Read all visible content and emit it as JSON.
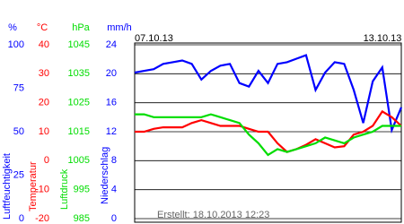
{
  "chart_data": {
    "type": "line",
    "categories": [
      "07.10.13",
      null,
      null,
      null,
      null,
      null,
      null,
      null,
      null,
      null,
      null,
      null,
      null,
      null,
      null,
      null,
      null,
      null,
      null,
      null,
      null,
      null,
      null,
      null,
      "13.10.13",
      null,
      null,
      null,
      null
    ],
    "y_axes": [
      {
        "unit": "%",
        "title": "Luftfeuchtigkeit",
        "color": "#0000ff",
        "lim": [
          0,
          100
        ],
        "ticks": [
          0,
          25,
          50,
          75,
          100
        ]
      },
      {
        "unit": "°C",
        "title": "Temperatur",
        "color": "#ff0000",
        "lim": [
          -20,
          40
        ],
        "ticks": [
          -20,
          -10,
          0,
          10,
          20,
          30,
          40
        ]
      },
      {
        "unit": "hPa",
        "title": "Luftdruck",
        "color": "#00dd00",
        "lim": [
          985,
          1045
        ],
        "ticks": [
          985,
          995,
          1005,
          1015,
          1025,
          1035,
          1045
        ]
      },
      {
        "unit": "mm/h",
        "title": "Niederschlag",
        "color": "#0000ff",
        "lim": [
          0,
          24
        ],
        "ticks": [
          0,
          4,
          8,
          12,
          16,
          20,
          24
        ]
      }
    ],
    "grid_axis": 1,
    "series": [
      {
        "axis": 0,
        "color": "#0000ff",
        "values": [
          84,
          85,
          86,
          89,
          90,
          91,
          89,
          80,
          85,
          88,
          89,
          78,
          76,
          85,
          78,
          89,
          90,
          92,
          94,
          74,
          84,
          90,
          89,
          74,
          55,
          79,
          87,
          51,
          64
        ]
      },
      {
        "axis": 1,
        "color": "#ff0000",
        "values": [
          10,
          10,
          11,
          11.5,
          11.5,
          11.5,
          13,
          14,
          13,
          12,
          12,
          12,
          11,
          10,
          10,
          6,
          3,
          4,
          5.5,
          7.4,
          6,
          4.6,
          5,
          9,
          10,
          12,
          17,
          15,
          12
        ]
      },
      {
        "axis": 2,
        "color": "#00dd00",
        "values": [
          1021,
          1021,
          1020,
          1020,
          1020,
          1020,
          1020,
          1020,
          1021,
          1020,
          1019,
          1018,
          1014,
          1011,
          1007,
          1009,
          1008,
          1009,
          1010,
          1011,
          1013,
          1012,
          1011,
          1013,
          1014,
          1015,
          1017,
          1017,
          1017
        ]
      }
    ],
    "footer": "Erstellt: 18.10.2013 12:23"
  }
}
